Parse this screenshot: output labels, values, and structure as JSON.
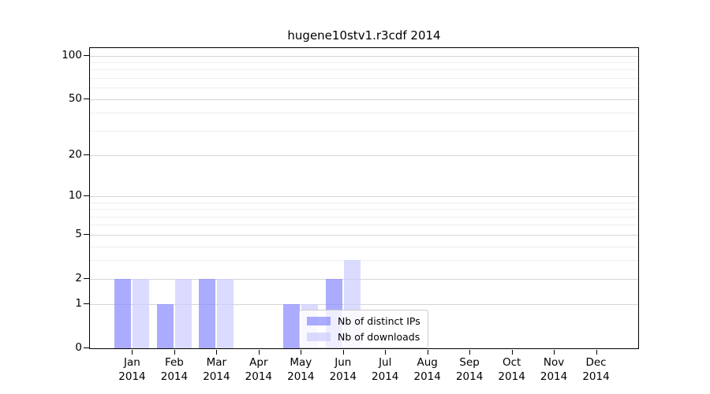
{
  "chart_data": {
    "type": "bar",
    "title": "hugene10stv1.r3cdf 2014",
    "categories": [
      "Jan",
      "Feb",
      "Mar",
      "Apr",
      "May",
      "Jun",
      "Jul",
      "Aug",
      "Sep",
      "Oct",
      "Nov",
      "Dec"
    ],
    "category_year": "2014",
    "series": [
      {
        "name": "Nb of distinct IPs",
        "color": "#8888ff",
        "values": [
          2,
          1,
          2,
          0,
          1,
          2,
          0,
          0,
          0,
          0,
          0,
          0
        ]
      },
      {
        "name": "Nb of downloads",
        "color": "#ccccff",
        "values": [
          2,
          2,
          2,
          0,
          1,
          3,
          0,
          0,
          0,
          0,
          0,
          0
        ]
      }
    ],
    "bar_alpha": 0.7,
    "yscale": "log1p",
    "ylim": [
      0,
      113
    ],
    "yticks": [
      0,
      1,
      2,
      5,
      10,
      20,
      50,
      100
    ],
    "ytick_labels": [
      "0",
      "1",
      "2",
      "5",
      "10",
      "20",
      "50",
      "100"
    ],
    "yticks_minor": [
      3,
      4,
      6,
      7,
      8,
      9,
      30,
      40,
      60,
      70,
      80,
      90
    ],
    "grid": true,
    "legend_position": "lower-center-inside",
    "colors": {
      "grid_major": "#d6d6d6",
      "grid_minor": "#efefef",
      "axis": "#000000",
      "legend_border": "#cccccc",
      "text": "#000000"
    }
  }
}
